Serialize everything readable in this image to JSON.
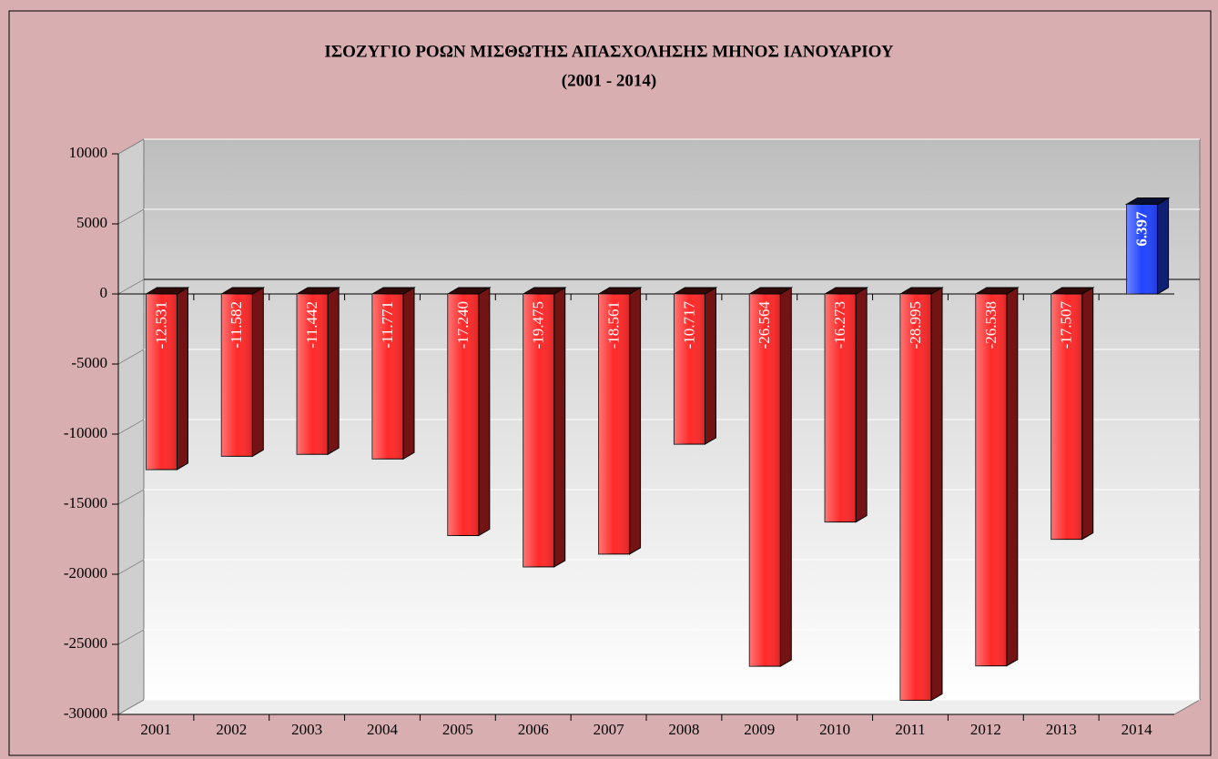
{
  "chart_data": {
    "type": "bar",
    "title": "ΙΣΟΖΥΓΙΟ ΡΟΩΝ ΜΙΣΘΩΤΗΣ ΑΠΑΣΧΟΛΗΣΗΣ ΜΗΝΟΣ ΙΑΝΟΥΑΡΙΟΥ",
    "subtitle": "(2001 - 2014)",
    "categories": [
      "2001",
      "2002",
      "2003",
      "2004",
      "2005",
      "2006",
      "2007",
      "2008",
      "2009",
      "2010",
      "2011",
      "2012",
      "2013",
      "2014"
    ],
    "values": [
      -12531,
      -11582,
      -11442,
      -11771,
      -17240,
      -19475,
      -18561,
      -10717,
      -26564,
      -16273,
      -28995,
      -26538,
      -17507,
      6397
    ],
    "value_labels": [
      "-12.531",
      "-11.582",
      "-11.442",
      "-11.771",
      "-17.240",
      "-19.475",
      "-18.561",
      "-10.717",
      "-26.564",
      "-16.273",
      "-28.995",
      "-26.538",
      "-17.507",
      "6.397"
    ],
    "colors": [
      "#ff2a2a",
      "#ff2a2a",
      "#ff2a2a",
      "#ff2a2a",
      "#ff2a2a",
      "#ff2a2a",
      "#ff2a2a",
      "#ff2a2a",
      "#ff2a2a",
      "#ff2a2a",
      "#ff2a2a",
      "#ff2a2a",
      "#ff2a2a",
      "#2244ff"
    ],
    "ylim": [
      -30000,
      10000
    ],
    "yticks": [
      -30000,
      -25000,
      -20000,
      -15000,
      -10000,
      -5000,
      0,
      5000,
      10000
    ],
    "grid": true
  }
}
